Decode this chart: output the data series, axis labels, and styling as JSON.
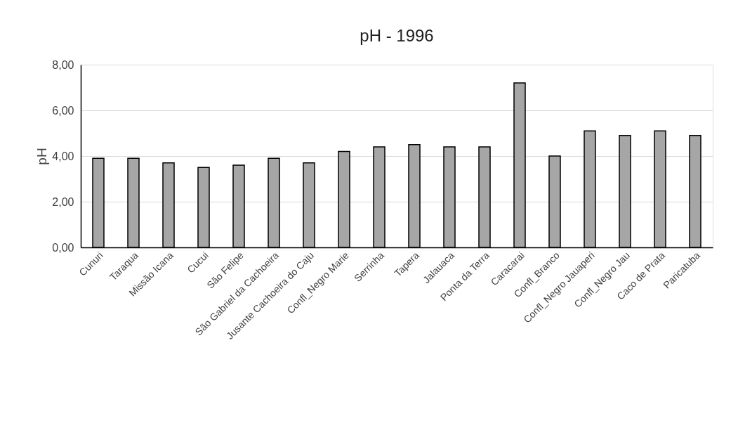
{
  "chart_data": {
    "type": "bar",
    "title": "pH - 1996",
    "ylabel": "pH",
    "categories": [
      "Cunuri",
      "Taraqua",
      "Missão Icana",
      "Cucui",
      "São Felipe",
      "São Gabriel da Cachoeira",
      "Jusante Cachoeira do Caju",
      "Confl_Negro Marie",
      "Serrinha",
      "Tapera",
      "Jalauaca",
      "Ponta da Terra",
      "Caracarai",
      "Confl_Branco",
      "Confl_Negro Jauaperi",
      "Confl_Negro Jau",
      "Caco de Prata",
      "Paricatuba"
    ],
    "values": [
      3.9,
      3.9,
      3.7,
      3.5,
      3.6,
      3.9,
      3.7,
      4.2,
      4.4,
      4.5,
      4.4,
      4.4,
      7.2,
      4.0,
      5.1,
      4.9,
      5.1,
      4.9
    ],
    "color": "#a6a6a6",
    "ylim": [
      0,
      8
    ],
    "yticks": [
      {
        "value": 0,
        "label": "0,00"
      },
      {
        "value": 2,
        "label": "2,00"
      },
      {
        "value": 4,
        "label": "4,00"
      },
      {
        "value": 6,
        "label": "6,00"
      },
      {
        "value": 8,
        "label": "8,00"
      }
    ],
    "grid": "y"
  }
}
